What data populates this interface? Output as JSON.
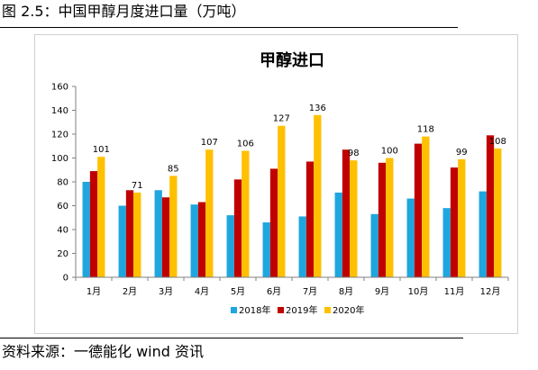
{
  "caption": "图 2.5：中国甲醇月度进口量（万吨）",
  "source": "资料来源：一德能化 wind 资讯",
  "chart_data": {
    "type": "bar",
    "title": "甲醇进口",
    "categories": [
      "1月",
      "2月",
      "3月",
      "4月",
      "5月",
      "6月",
      "7月",
      "8月",
      "9月",
      "10月",
      "11月",
      "12月"
    ],
    "ylim": [
      0,
      160
    ],
    "yticks": [
      0,
      20,
      40,
      60,
      80,
      100,
      120,
      140,
      160
    ],
    "grid": false,
    "legend": "bottom",
    "series": [
      {
        "name": "2018年",
        "color": "#1EA6DF",
        "values": [
          80,
          60,
          73,
          61,
          52,
          46,
          51,
          71,
          53,
          66,
          58,
          72
        ]
      },
      {
        "name": "2019年",
        "color": "#C00000",
        "values": [
          89,
          73,
          67,
          63,
          82,
          91,
          97,
          107,
          96,
          112,
          92,
          119
        ]
      },
      {
        "name": "2020年",
        "color": "#FFC000",
        "values": [
          101,
          71,
          85,
          107,
          106,
          127,
          136,
          98,
          100,
          118,
          99,
          108
        ]
      }
    ],
    "data_labels_series": "2020年"
  }
}
